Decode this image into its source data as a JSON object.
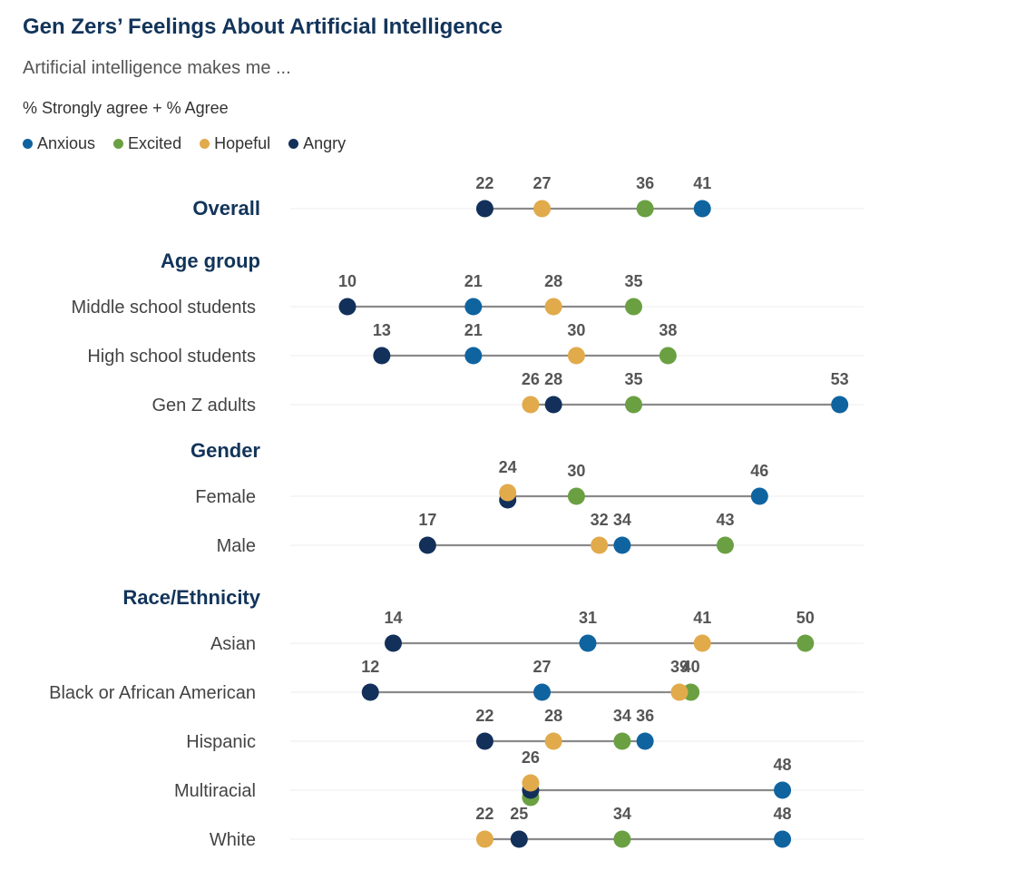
{
  "chart_data": {
    "type": "dot",
    "title": "Gen Zers’ Feelings About Artificial Intelligence",
    "subtitle": "Artificial intelligence makes me ...",
    "note": "% Strongly agree + % Agree",
    "legend_placement": "top-left",
    "grid": false,
    "series": [
      {
        "name": "Anxious",
        "color": "#0f64a0"
      },
      {
        "name": "Excited",
        "color": "#6aa042"
      },
      {
        "name": "Hopeful",
        "color": "#e1aa4b"
      },
      {
        "name": "Angry",
        "color": "#12305a"
      }
    ],
    "groups": [
      {
        "title": "Overall",
        "rows": [
          {
            "label": "Overall",
            "values": {
              "Anxious": 41,
              "Excited": 36,
              "Hopeful": 27,
              "Angry": 22
            }
          }
        ]
      },
      {
        "title": "Age group",
        "rows": [
          {
            "label": "Middle school students",
            "values": {
              "Anxious": 21,
              "Excited": 35,
              "Hopeful": 28,
              "Angry": 10
            }
          },
          {
            "label": "High school students",
            "values": {
              "Anxious": 21,
              "Excited": 38,
              "Hopeful": 30,
              "Angry": 13
            }
          },
          {
            "label": "Gen Z adults",
            "values": {
              "Anxious": 53,
              "Excited": 35,
              "Hopeful": 26,
              "Angry": 28
            }
          }
        ]
      },
      {
        "title": "Gender",
        "rows": [
          {
            "label": "Female",
            "values": {
              "Anxious": 46,
              "Excited": 30,
              "Hopeful": 24,
              "Angry": 24
            }
          },
          {
            "label": "Male",
            "values": {
              "Anxious": 34,
              "Excited": 43,
              "Hopeful": 32,
              "Angry": 17
            }
          }
        ]
      },
      {
        "title": "Race/Ethnicity",
        "rows": [
          {
            "label": "Asian",
            "values": {
              "Anxious": 31,
              "Excited": 50,
              "Hopeful": 41,
              "Angry": 14
            }
          },
          {
            "label": "Black or African American",
            "values": {
              "Anxious": 27,
              "Excited": 40,
              "Hopeful": 39,
              "Angry": 12
            }
          },
          {
            "label": "Hispanic",
            "values": {
              "Anxious": 36,
              "Excited": 34,
              "Hopeful": 28,
              "Angry": 22
            }
          },
          {
            "label": "Multiracial",
            "values": {
              "Anxious": 48,
              "Excited": 26,
              "Hopeful": 26,
              "Angry": 26
            }
          },
          {
            "label": "White",
            "values": {
              "Anxious": 48,
              "Excited": 34,
              "Hopeful": 22,
              "Angry": 25
            }
          }
        ]
      }
    ]
  }
}
